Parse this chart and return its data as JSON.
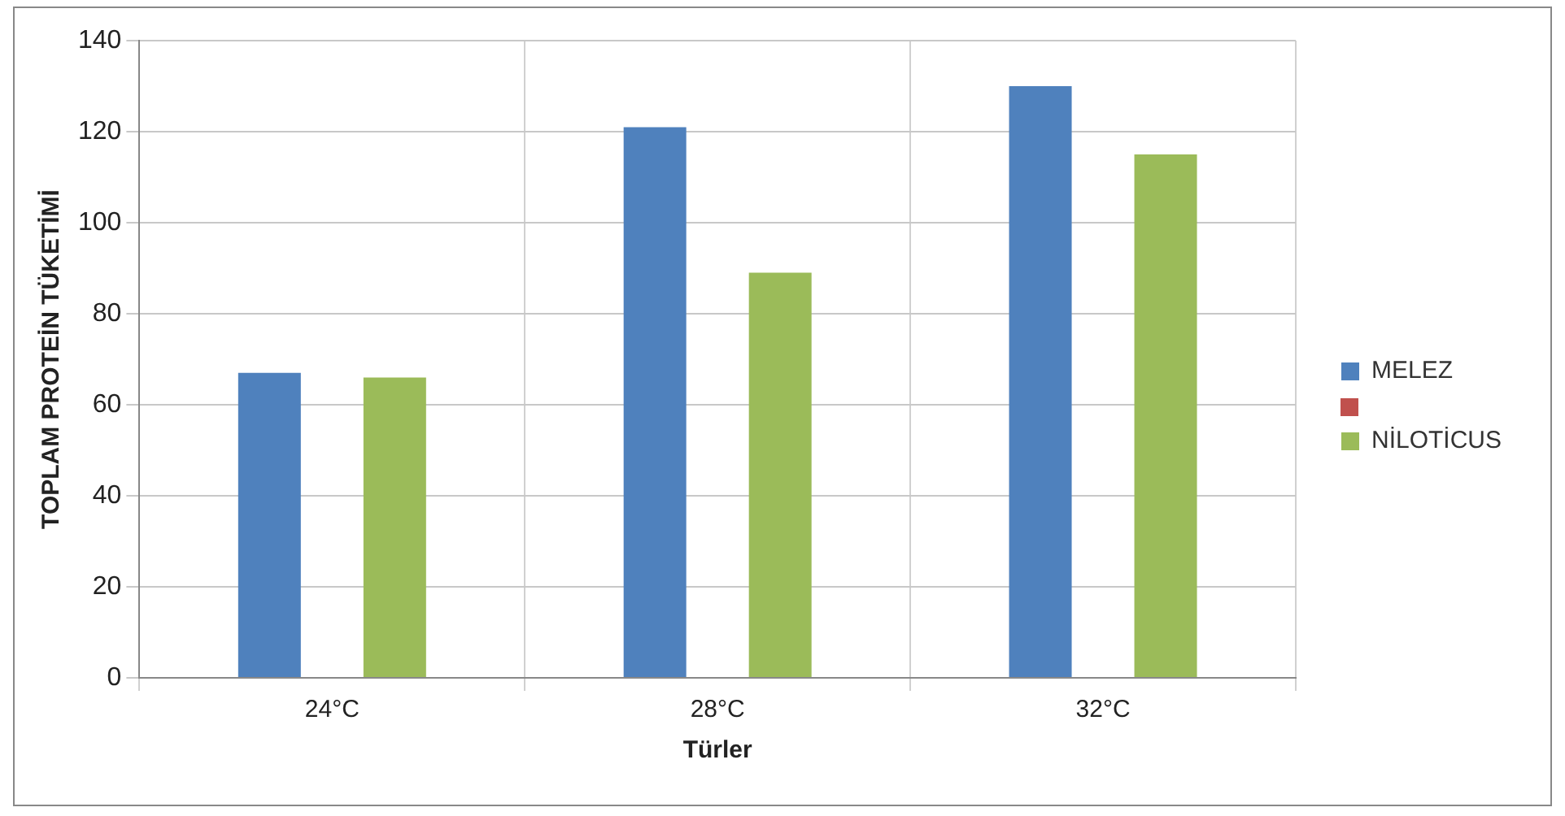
{
  "chart_data": {
    "type": "bar",
    "xlabel": "Türler",
    "ylabel": "TOPLAM PROTEİN TÜKETİMİ",
    "categories": [
      "24°C",
      "28°C",
      "32°C"
    ],
    "series": [
      {
        "name": "MELEZ",
        "color": "#4f81bd",
        "values": [
          67,
          121,
          130
        ]
      },
      {
        "name": "NİLOTİCUS",
        "color": "#9bbb59",
        "values": [
          66,
          89,
          115
        ]
      }
    ],
    "ylim": [
      0,
      140
    ],
    "yticks": [
      0,
      20,
      40,
      60,
      80,
      100,
      120,
      140
    ],
    "grid": true,
    "legend": "right"
  }
}
